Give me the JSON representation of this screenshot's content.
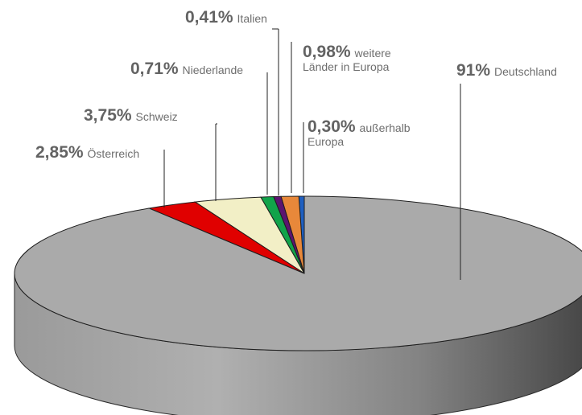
{
  "chart_data": {
    "type": "pie",
    "style": "3d",
    "series": [
      {
        "label": "Deutschland",
        "display_value": "91%",
        "value": 91.0,
        "color": "#aaaaaa"
      },
      {
        "label": "Österreich",
        "display_value": "2,85%",
        "value": 2.85,
        "color": "#e00000"
      },
      {
        "label": "Schweiz",
        "display_value": "3,75%",
        "value": 3.75,
        "color": "#f2efc6"
      },
      {
        "label": "Niederlande",
        "display_value": "0,71%",
        "value": 0.71,
        "color": "#11a34a"
      },
      {
        "label": "Italien",
        "display_value": "0,41%",
        "value": 0.41,
        "color": "#5b1470"
      },
      {
        "label": "weitere Länder in Europa",
        "label_lines": [
          "weitere",
          "Länder in Europa"
        ],
        "display_value": "0,98%",
        "value": 0.98,
        "color": "#e8883a"
      },
      {
        "label": "außerhalb Europa",
        "label_lines": [
          "außerhalb",
          "Europa"
        ],
        "display_value": "0,30%",
        "value": 0.3,
        "color": "#1f5fc0"
      }
    ]
  }
}
